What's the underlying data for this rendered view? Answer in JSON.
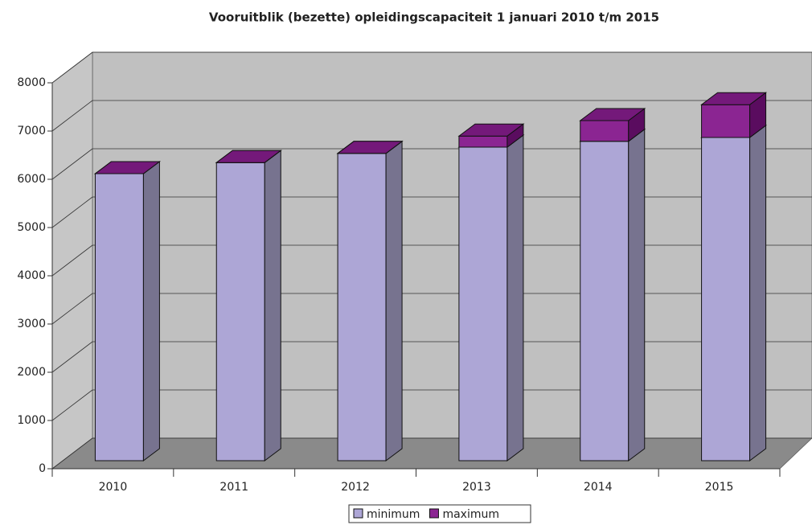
{
  "chart_data": {
    "type": "bar3d_stacked",
    "title": "Vooruitblik (bezette) opleidingscapaciteit 1 januari 2010 t/m 2015",
    "categories": [
      "2010",
      "2011",
      "2012",
      "2013",
      "2014",
      "2015"
    ],
    "series": [
      {
        "name": "minimum",
        "color": "#ada6d6",
        "side": "#77738f",
        "top": "#c9c4e6",
        "values": [
          5950,
          6180,
          6370,
          6500,
          6620,
          6700
        ]
      },
      {
        "name": "maximum",
        "color": "#8b2592",
        "side": "#5a0c5f",
        "top": "#74197a",
        "values": [
          0,
          0,
          0,
          230,
          430,
          680
        ]
      }
    ],
    "ylim": [
      0,
      8000
    ],
    "yticks": [
      0,
      1000,
      2000,
      3000,
      4000,
      5000,
      6000,
      7000,
      8000
    ],
    "grid": true
  }
}
